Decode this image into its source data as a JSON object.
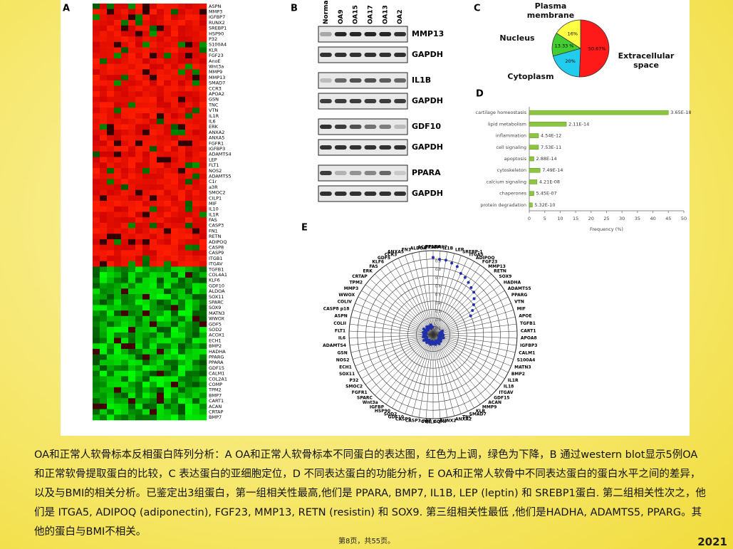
{
  "panel_labels": [
    "A",
    "B",
    "C",
    "D",
    "E"
  ],
  "heatmap": {
    "labels": [
      "ASPN",
      "MMP3",
      "IGFBP7",
      "RUNX2",
      "SREBP1",
      "HSP90",
      "P32",
      "S100A4",
      "KLR",
      "FGF23",
      "AnoE",
      "Wnt3a",
      "MMP9",
      "MMP13",
      "SMAD7",
      "CCR3",
      "APOA2",
      "GSN",
      "TNC",
      "VTN",
      "IL1R",
      "IL6",
      "ERK",
      "ANXA2",
      "ANXA5",
      "FGFR1",
      "IGFBP3",
      "ADAMTS4",
      "LEP",
      "FLT1",
      "NOS2",
      "ADAMTS5",
      "C1r",
      "a3R",
      "SMOC2",
      "CILP1",
      "MIF",
      "IL10",
      "IL1R",
      "FAS",
      "CASP3",
      "FN1",
      "RETN",
      "ADIPOQ",
      "CASP8",
      "CASP9",
      "ITGB1",
      "ITGAV",
      "TGFB1",
      "COL4A1",
      "KLF6",
      "GDF10",
      "ALDOA",
      "SOX11",
      "SPARC",
      "SOX9",
      "MATN3",
      "WWOX",
      "GDF5",
      "SOD2",
      "ACOX1",
      "ECH1",
      "BMP2",
      "HADHA",
      "PPARG",
      "PPARA",
      "GDF15",
      "CALM1",
      "COL2A1",
      "COMP",
      "TPM2",
      "BMP7",
      "CART1",
      "ACAN",
      "CRTAP",
      "BMP7"
    ]
  },
  "western_blot": {
    "lanes": [
      "Normal",
      "OA9",
      "OA15",
      "OA17",
      "OA13",
      "OA2"
    ],
    "rows": [
      "MMP13",
      "GAPDH",
      "IL1B",
      "GAPDH",
      "GDF10",
      "GAPDH",
      "PPARA",
      "GAPDH"
    ]
  },
  "chart_data": [
    {
      "type": "pie",
      "categories": [
        "Extracellular space",
        "Cytoplasm",
        "Nucleus",
        "Plasma membrane"
      ],
      "values": [
        50.67,
        20,
        13.33,
        16
      ],
      "value_labels": [
        "50.67%",
        "20%",
        "13.33 %",
        "16%"
      ],
      "colors": [
        "#ff1a1a",
        "#22ccee",
        "#44cc33",
        "#ffff44"
      ]
    },
    {
      "type": "bar",
      "orientation": "horizontal",
      "categories": [
        "cartilage homeostasis",
        "lipid metabolism",
        "inflammation",
        "cell signaling",
        "apoptosis",
        "cytoskeleton",
        "calcium signaling",
        "chaperones",
        "protein degradation"
      ],
      "values": [
        45,
        12,
        3,
        3,
        1.5,
        3.5,
        2.5,
        1.5,
        1
      ],
      "annotations": [
        "3.65E-18",
        "2.11E-14",
        "4.54E-12",
        "7.53E-11",
        "2.88E-14",
        "7.49E-14",
        "4.21E-08",
        "5.45E-07",
        "5.32E-10"
      ],
      "color": "#8cc63e",
      "xlim": [
        0,
        50
      ],
      "xticks": [
        0,
        5,
        10,
        15,
        20,
        25,
        30,
        35,
        40,
        45,
        50
      ],
      "xlabel": "Frequency (%)"
    },
    {
      "type": "radar",
      "categories": [
        "PPARA",
        "BMP7",
        "IL1B",
        "LEP",
        "SREBP-1",
        "ITGA5",
        "ADIPOQ",
        "FGF23",
        "MMP13",
        "RETN",
        "SOX9",
        "HADHA",
        "ADAMTS5",
        "PPARG",
        "VTN",
        "MIF",
        "APOE",
        "TGFB1",
        "CART1",
        "APOA8",
        "IGFBP3",
        "CALM1",
        "S100A4",
        "MATN3",
        "BMP2",
        "IL1R",
        "IL18",
        "ITGAV",
        "GDF15",
        "ACAN",
        "MMP9",
        "KLB",
        "SMAD7",
        "TNC",
        "ANXA2",
        "RUNX2",
        "COMP",
        "CILP-1",
        "CTR",
        "CASP3 p17",
        "CASP9",
        "GDF10",
        "SOD2",
        "HSP90",
        "IGFBP",
        "Wnt3a",
        "SPARC",
        "FGFR1",
        "SMOC2",
        "P32",
        "SOX11",
        "ECH1",
        "NOS2",
        "GSN",
        "ADAMTS4",
        "IL6",
        "FLT1",
        "COLII",
        "ASPN",
        "CASP8 p18",
        "COLIV",
        "WWOX",
        "MMP3",
        "TPM2",
        "CRTAP",
        "ERK",
        "FAS",
        "KLF6",
        "GDF5",
        "CCR3",
        "ANXA5",
        "FN1",
        "ALDOA",
        "ACOX1"
      ],
      "values": [
        0.92,
        0.9,
        0.9,
        0.88,
        0.86,
        0.8,
        0.78,
        0.75,
        0.72,
        0.7,
        0.65,
        0.6,
        0.55,
        0.5,
        0.12,
        0.1,
        0.08,
        0.11,
        0.09,
        0.12,
        0.1,
        0.07,
        0.13,
        0.1,
        0.09,
        0.11,
        0.08,
        0.12,
        0.1,
        0.09,
        0.13,
        0.11,
        0.08,
        0.1,
        0.12,
        0.09,
        0.1,
        0.11,
        0.08,
        0.1,
        0.12,
        0.09,
        0.11,
        0.1,
        0.08,
        0.12,
        0.1,
        0.09,
        0.11,
        0.13,
        0.1,
        0.08,
        0.1,
        0.12,
        0.09,
        0.11,
        0.1,
        0.08,
        0.12,
        0.1,
        0.09,
        0.11,
        0.13,
        0.1,
        0.08,
        0.1,
        0.12,
        0.09,
        0.11,
        0.1,
        0.08,
        0.12,
        0.1,
        0.09
      ],
      "color": "#1f2fb0",
      "rlim": [
        0,
        1
      ],
      "rticks": [
        0.1,
        0.2,
        0.3,
        0.4,
        0.5,
        0.6,
        0.7,
        0.8,
        0.9
      ]
    }
  ],
  "caption": "OA和正常人软骨标本反相蛋白阵列分析：A  OA和正常人软骨标本不同蛋白的表达图，红色为上调，绿色为下降，B  通过western blot显示5例OA和正常软骨提取蛋白的比较，C  表达蛋白的亚细胞定位，D  不同表达蛋白的功能分析，E  OA和正常人软骨中不同表达蛋白的蛋白水平之间的差异，以及与BMI的相关分析。已鉴定出3组蛋白，第一组相关性最高,他们是 PPARA, BMP7, IL1B, LEP (leptin) 和 SREBP1蛋白. 第二组相关性次之，他们是 ITGA5, ADIPOQ (adiponectin), FGF23, MMP13, RETN (resistin) 和 SOX9. 第三组相关性最低 ,他们是HADHA, ADAMTS5, PPARG。其他的蛋白与BMI不相关。",
  "footer": "第8页，共55页。",
  "year": "2021"
}
